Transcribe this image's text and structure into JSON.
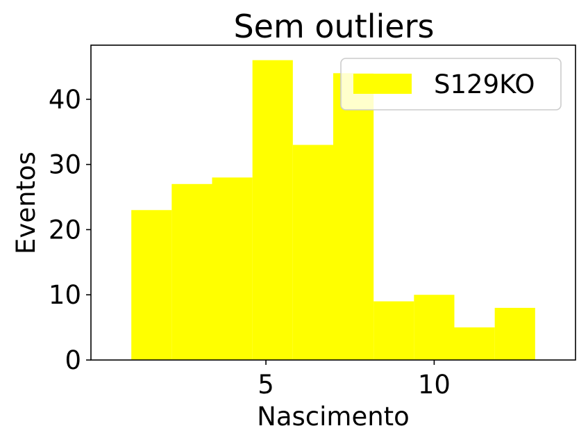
{
  "chart_data": {
    "type": "bar",
    "title": "Sem outliers",
    "xlabel": "Nascimento",
    "ylabel": "Eventos",
    "bin_edges": [
      1.0,
      2.2,
      3.4,
      4.6,
      5.8,
      7.0,
      8.2,
      9.4,
      10.6,
      11.8,
      13.0
    ],
    "values": [
      23,
      27,
      28,
      46,
      33,
      44,
      9,
      10,
      5,
      8
    ],
    "xlim": [
      -0.2,
      14.2
    ],
    "ylim": [
      0,
      48.3
    ],
    "xticks": [
      5,
      10
    ],
    "yticks": [
      0,
      10,
      20,
      30,
      40
    ],
    "series": [
      {
        "name": "S129KO",
        "color": "#ffff00"
      }
    ],
    "legend": "top-right",
    "grid": false
  }
}
